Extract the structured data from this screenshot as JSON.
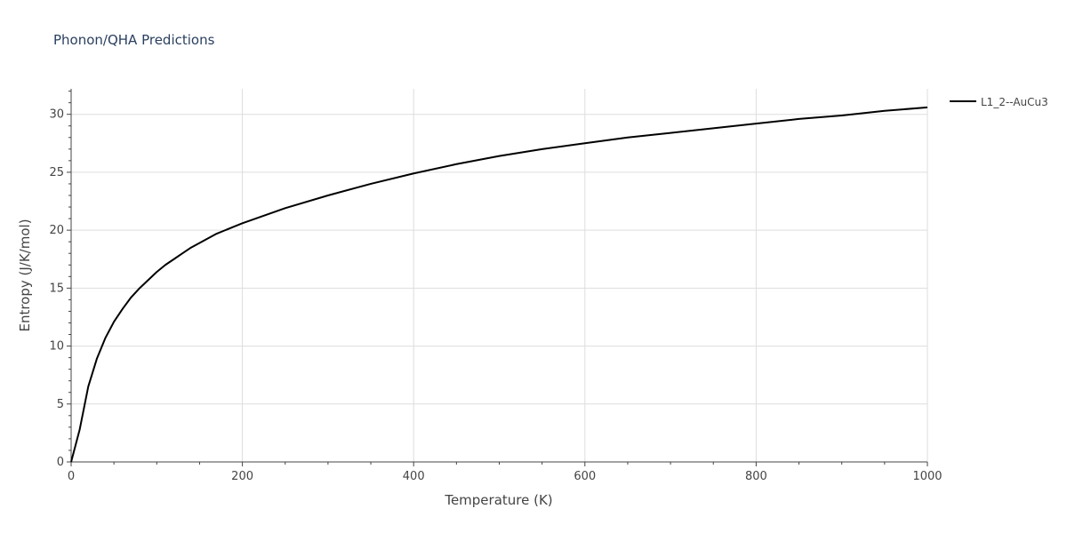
{
  "chart_data": {
    "type": "line",
    "title": "Phonon/QHA Predictions",
    "xlabel": "Temperature (K)",
    "ylabel": "Entropy (J/K/mol)",
    "xlim": [
      0,
      1000
    ],
    "ylim": [
      0,
      32.2
    ],
    "xticks": [
      0,
      200,
      400,
      600,
      800,
      1000
    ],
    "yticks": [
      0,
      5,
      10,
      15,
      20,
      25,
      30
    ],
    "grid": true,
    "legend_position": "top-right",
    "series": [
      {
        "name": "L1_2--AuCu3",
        "color": "#000000",
        "x": [
          0,
          10,
          20,
          30,
          40,
          50,
          60,
          70,
          80,
          90,
          100,
          110,
          120,
          130,
          140,
          150,
          160,
          170,
          180,
          190,
          200,
          250,
          300,
          350,
          400,
          450,
          500,
          550,
          600,
          650,
          700,
          750,
          800,
          850,
          900,
          950,
          1000
        ],
        "values": [
          0,
          2.8,
          6.5,
          8.9,
          10.7,
          12.1,
          13.2,
          14.2,
          15.0,
          15.7,
          16.4,
          17.0,
          17.5,
          18.0,
          18.5,
          18.9,
          19.3,
          19.7,
          20.0,
          20.3,
          20.6,
          21.9,
          23.0,
          24.0,
          24.9,
          25.7,
          26.4,
          27.0,
          27.5,
          28.0,
          28.4,
          28.8,
          29.2,
          29.6,
          29.9,
          30.3,
          30.6
        ]
      }
    ]
  }
}
